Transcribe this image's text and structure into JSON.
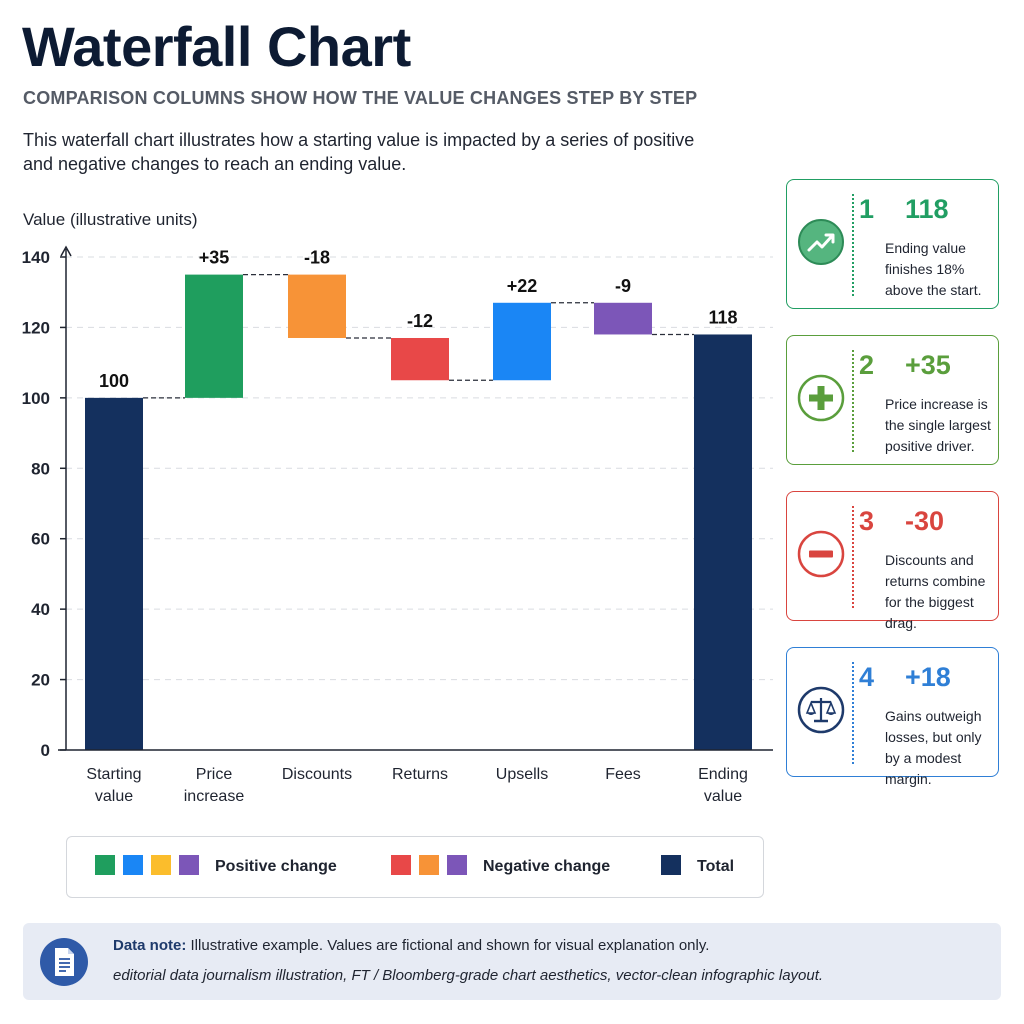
{
  "header": {
    "title": "Waterfall Chart",
    "subtitle": "COMPARISON COLUMNS SHOW HOW THE VALUE CHANGES STEP BY STEP",
    "description": "This waterfall chart illustrates how a starting value is impacted by a series of positive and negative changes to reach an ending value."
  },
  "chart_data": {
    "type": "bar",
    "subtype": "waterfall",
    "ylabel": "Value (illustrative units)",
    "ylim": [
      0,
      140
    ],
    "yticks": [
      0,
      20,
      40,
      60,
      80,
      100,
      120,
      140
    ],
    "grid": true,
    "categories": [
      "Starting value",
      "Price increase",
      "Discounts",
      "Returns",
      "Upsells",
      "Fees",
      "Ending value"
    ],
    "category_lines": [
      [
        "Starting",
        "value"
      ],
      [
        "Price",
        "increase"
      ],
      [
        "Discounts"
      ],
      [
        "Returns"
      ],
      [
        "Upsells"
      ],
      [
        "Fees"
      ],
      [
        "Ending",
        "value"
      ]
    ],
    "values": [
      100,
      35,
      -18,
      -12,
      22,
      -9,
      118
    ],
    "kinds": [
      "total",
      "delta",
      "delta",
      "delta",
      "delta",
      "delta",
      "total"
    ],
    "data_labels": [
      "100",
      "+35",
      "-18",
      "-12",
      "+22",
      "-9",
      "118"
    ],
    "colors": [
      "#14305e",
      "#1f9e5e",
      "#f79337",
      "#e84848",
      "#1a86f5",
      "#7c56b8",
      "#14305e"
    ]
  },
  "legend": {
    "groups": [
      {
        "label": "Positive change",
        "colors": [
          "#1f9e5e",
          "#1a86f5",
          "#fbbd2c",
          "#7c56b8"
        ]
      },
      {
        "label": "Negative change",
        "colors": [
          "#e84848",
          "#f79337",
          "#7c56b8"
        ]
      },
      {
        "label": "Total",
        "colors": [
          "#14305e"
        ]
      }
    ]
  },
  "cards": [
    {
      "num": "1",
      "value": "118",
      "text": "Ending value finishes 18% above the start.",
      "color": "#219e63",
      "icon": "trend-up-icon"
    },
    {
      "num": "2",
      "value": "+35",
      "text": "Price increase is the single largest positive driver.",
      "color": "#5a9e3c",
      "icon": "plus-icon"
    },
    {
      "num": "3",
      "value": "-30",
      "text": "Discounts and returns combine for the biggest drag.",
      "color": "#d9453f",
      "icon": "minus-icon"
    },
    {
      "num": "4",
      "value": "+18",
      "text": "Gains outweigh losses, but only by a modest margin.",
      "color": "#2f7fd6",
      "icon": "scales-icon"
    }
  ],
  "note": {
    "label": "Data note:",
    "text": "Illustrative example. Values are fictional and shown for visual explanation only.",
    "line2": "editorial data journalism illustration, FT / Bloomberg-grade chart aesthetics, vector-clean infographic layout.",
    "icon": "document-icon"
  }
}
